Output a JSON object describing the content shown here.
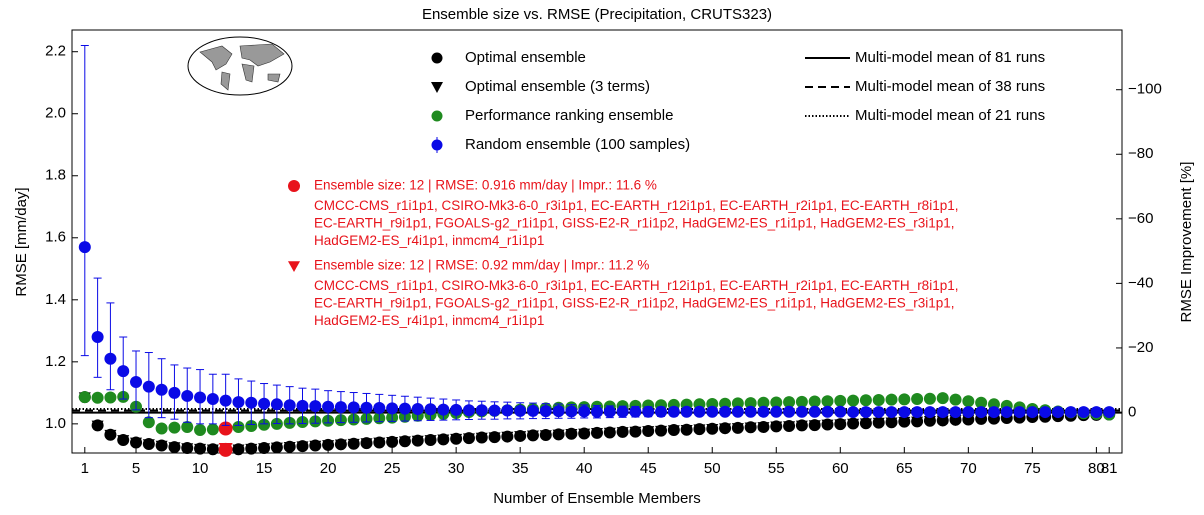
{
  "chart_data": {
    "type": "scatter",
    "title": "Ensemble size vs. RMSE (Precipitation, CRUTS323)",
    "x_label": "Number of Ensemble Members",
    "y_label": "RMSE [mm/day]",
    "y2_label": "RMSE Improvement [%]",
    "x": [
      1,
      2,
      3,
      4,
      5,
      6,
      7,
      8,
      9,
      10,
      11,
      12,
      13,
      14,
      15,
      16,
      17,
      18,
      19,
      20,
      21,
      22,
      23,
      24,
      25,
      26,
      27,
      28,
      29,
      30,
      31,
      32,
      33,
      34,
      35,
      36,
      37,
      38,
      39,
      40,
      41,
      42,
      43,
      44,
      45,
      46,
      47,
      48,
      49,
      50,
      51,
      52,
      53,
      54,
      55,
      56,
      57,
      58,
      59,
      60,
      61,
      62,
      63,
      64,
      65,
      66,
      67,
      68,
      69,
      70,
      71,
      72,
      73,
      74,
      75,
      76,
      77,
      78,
      79,
      80,
      81
    ],
    "xlim": [
      0,
      82
    ],
    "xticks": [
      1,
      5,
      10,
      15,
      20,
      25,
      30,
      35,
      40,
      45,
      50,
      55,
      60,
      65,
      70,
      75,
      80,
      81
    ],
    "ylim": [
      0.906,
      2.27
    ],
    "yticks": [
      {
        "value": 1,
        "label": "1.0"
      },
      1.2,
      1.4,
      1.6,
      1.8,
      {
        "value": 2,
        "label": "2.0"
      },
      2.2
    ],
    "y2lim": [
      12.55,
      -118.5
    ],
    "y2ticks": [
      0,
      {
        "value": -20,
        "label": "−20"
      },
      {
        "value": -40,
        "label": "−40"
      },
      {
        "value": -60,
        "label": "−60"
      },
      {
        "value": -80,
        "label": "−80"
      },
      {
        "value": -100,
        "label": "−100"
      }
    ],
    "series": [
      {
        "name": "Optimal ensemble (3 terms)",
        "marker": "triangle",
        "color": "#000000",
        "values": [
          1.086,
          0.995,
          0.965,
          0.948,
          0.94,
          0.935,
          0.93,
          0.925,
          0.922,
          0.92,
          0.918,
          0.92,
          0.918,
          0.92,
          0.922,
          0.924,
          0.926,
          0.928,
          0.93,
          0.932,
          0.934,
          0.936,
          0.938,
          0.94,
          0.942,
          0.944,
          0.946,
          0.948,
          0.95,
          0.952,
          0.954,
          0.956,
          0.957,
          0.959,
          0.961,
          0.963,
          0.964,
          0.966,
          0.968,
          0.969,
          0.971,
          0.972,
          0.974,
          0.975,
          0.977,
          0.978,
          0.98,
          0.981,
          0.983,
          0.984,
          0.986,
          0.987,
          0.989,
          0.99,
          0.992,
          0.993,
          0.995,
          0.996,
          0.998,
          0.999,
          1.001,
          1.002,
          1.004,
          1.005,
          1.007,
          1.008,
          1.01,
          1.011,
          1.013,
          1.014,
          1.016,
          1.017,
          1.019,
          1.02,
          1.022,
          1.023,
          1.025,
          1.026,
          1.028,
          1.029,
          1.03
        ]
      },
      {
        "name": "Optimal ensemble",
        "marker": "circle",
        "color": "#000000",
        "values": [
          1.086,
          0.995,
          0.965,
          0.948,
          0.94,
          0.935,
          0.93,
          0.925,
          0.922,
          0.92,
          0.918,
          0.916,
          0.918,
          0.92,
          0.922,
          0.924,
          0.926,
          0.928,
          0.93,
          0.932,
          0.934,
          0.936,
          0.938,
          0.94,
          0.942,
          0.944,
          0.946,
          0.948,
          0.95,
          0.952,
          0.954,
          0.956,
          0.957,
          0.959,
          0.961,
          0.963,
          0.964,
          0.966,
          0.968,
          0.969,
          0.971,
          0.972,
          0.974,
          0.975,
          0.977,
          0.978,
          0.98,
          0.981,
          0.983,
          0.984,
          0.986,
          0.987,
          0.989,
          0.99,
          0.992,
          0.993,
          0.995,
          0.996,
          0.998,
          0.999,
          1.001,
          1.002,
          1.004,
          1.005,
          1.007,
          1.008,
          1.01,
          1.011,
          1.013,
          1.014,
          1.016,
          1.017,
          1.019,
          1.02,
          1.022,
          1.023,
          1.025,
          1.026,
          1.028,
          1.029,
          1.03
        ]
      },
      {
        "name": "Performance ranking ensemble",
        "marker": "circle",
        "color": "#1f8a1f",
        "values": [
          1.086,
          1.084,
          1.085,
          1.087,
          1.055,
          1.005,
          0.985,
          0.988,
          0.99,
          0.98,
          0.982,
          0.985,
          0.99,
          0.993,
          0.997,
          1.0,
          1.003,
          1.006,
          1.008,
          1.01,
          1.012,
          1.014,
          1.016,
          1.018,
          1.02,
          1.023,
          1.026,
          1.029,
          1.032,
          1.035,
          1.038,
          1.04,
          1.042,
          1.044,
          1.046,
          1.048,
          1.05,
          1.052,
          1.053,
          1.054,
          1.055,
          1.056,
          1.057,
          1.058,
          1.059,
          1.06,
          1.061,
          1.062,
          1.063,
          1.064,
          1.065,
          1.066,
          1.067,
          1.068,
          1.069,
          1.07,
          1.071,
          1.072,
          1.073,
          1.074,
          1.075,
          1.076,
          1.077,
          1.078,
          1.079,
          1.08,
          1.081,
          1.083,
          1.078,
          1.073,
          1.068,
          1.063,
          1.058,
          1.053,
          1.048,
          1.044,
          1.04,
          1.037,
          1.034,
          1.032,
          1.03
        ]
      },
      {
        "name": "Random ensemble (100 samples)",
        "marker": "errorbar",
        "color": "#0a0ae6",
        "values": [
          1.57,
          1.28,
          1.21,
          1.17,
          1.135,
          1.12,
          1.11,
          1.1,
          1.09,
          1.085,
          1.08,
          1.075,
          1.07,
          1.068,
          1.065,
          1.063,
          1.06,
          1.058,
          1.057,
          1.055,
          1.054,
          1.053,
          1.052,
          1.051,
          1.05,
          1.049,
          1.048,
          1.047,
          1.046,
          1.045,
          1.044,
          1.044,
          1.043,
          1.043,
          1.042,
          1.042,
          1.041,
          1.041,
          1.04,
          1.04,
          1.039,
          1.039,
          1.039,
          1.039,
          1.039,
          1.039,
          1.039,
          1.039,
          1.039,
          1.039,
          1.039,
          1.039,
          1.039,
          1.039,
          1.039,
          1.039,
          1.039,
          1.039,
          1.039,
          1.039,
          1.038,
          1.038,
          1.038,
          1.038,
          1.038,
          1.038,
          1.038,
          1.038,
          1.038,
          1.038,
          1.038,
          1.038,
          1.038,
          1.038,
          1.038,
          1.038,
          1.038,
          1.038,
          1.038,
          1.038,
          1.038
        ],
        "error_minus": [
          0.35,
          0.13,
          0.1,
          0.09,
          0.09,
          0.1,
          0.09,
          0.085,
          0.085,
          0.085,
          0.08,
          0.08,
          0.075,
          0.07,
          0.065,
          0.062,
          0.06,
          0.057,
          0.055,
          0.052,
          0.05,
          0.048,
          0.046,
          0.044,
          0.042,
          0.04,
          0.038,
          0.036,
          0.034,
          0.032,
          0.03,
          0.029,
          0.028,
          0.027,
          0.026,
          0.025,
          0.024,
          0.023,
          0.022,
          0.021,
          0.02,
          0.019,
          0.018,
          0.017,
          0.016,
          0.015,
          0.014,
          0.013,
          0.012,
          0.012,
          0.011,
          0.011,
          0.01,
          0.01,
          0.009,
          0.009,
          0.008,
          0.008,
          0.007,
          0.007,
          0.006,
          0.006,
          0.006,
          0.005,
          0.005,
          0.005,
          0.004,
          0.004,
          0.004,
          0.003,
          0.003,
          0.003,
          0.003,
          0.002,
          0.002,
          0.002,
          0.002,
          0.001,
          0.001,
          0.001,
          0
        ],
        "error_plus": [
          0.65,
          0.19,
          0.18,
          0.11,
          0.1,
          0.11,
          0.1,
          0.09,
          0.09,
          0.09,
          0.08,
          0.085,
          0.075,
          0.07,
          0.065,
          0.062,
          0.06,
          0.057,
          0.055,
          0.052,
          0.05,
          0.048,
          0.046,
          0.044,
          0.042,
          0.04,
          0.038,
          0.036,
          0.034,
          0.032,
          0.03,
          0.029,
          0.028,
          0.027,
          0.026,
          0.025,
          0.024,
          0.023,
          0.022,
          0.021,
          0.02,
          0.019,
          0.018,
          0.017,
          0.016,
          0.015,
          0.014,
          0.013,
          0.012,
          0.012,
          0.011,
          0.011,
          0.01,
          0.01,
          0.009,
          0.009,
          0.008,
          0.008,
          0.007,
          0.007,
          0.006,
          0.006,
          0.006,
          0.005,
          0.005,
          0.005,
          0.004,
          0.004,
          0.004,
          0.003,
          0.003,
          0.003,
          0.003,
          0.002,
          0.002,
          0.002,
          0.002,
          0.001,
          0.001,
          0.001,
          0
        ]
      }
    ],
    "reference_lines": [
      {
        "name": "Multi-model mean of 81 runs",
        "value": 1.036,
        "style": "solid"
      },
      {
        "name": "Multi-model mean of 38 runs",
        "value": 1.043,
        "style": "dashed"
      },
      {
        "name": "Multi-model mean of 21 runs",
        "value": 1.048,
        "style": "dotted"
      }
    ],
    "highlight_x": 12,
    "highlight_color": "#e8131b",
    "annotations": [
      {
        "marker": "circle",
        "lines": [
          "Ensemble size: 12 | RMSE: 0.916 mm/day | Impr.: 11.6 %",
          "CMCC-CMS_r1i1p1, CSIRO-Mk3-6-0_r3i1p1, EC-EARTH_r12i1p1, EC-EARTH_r2i1p1, EC-EARTH_r8i1p1,",
          "EC-EARTH_r9i1p1, FGOALS-g2_r1i1p1, GISS-E2-R_r1i1p2, HadGEM2-ES_r1i1p1, HadGEM2-ES_r3i1p1,",
          "HadGEM2-ES_r4i1p1, inmcm4_r1i1p1"
        ]
      },
      {
        "marker": "triangle",
        "lines": [
          "Ensemble size: 12 | RMSE: 0.92 mm/day | Impr.: 11.2 %",
          "CMCC-CMS_r1i1p1, CSIRO-Mk3-6-0_r3i1p1, EC-EARTH_r12i1p1, EC-EARTH_r2i1p1, EC-EARTH_r8i1p1,",
          "EC-EARTH_r9i1p1, FGOALS-g2_r1i1p1, GISS-E2-R_r1i1p2, HadGEM2-ES_r1i1p1, HadGEM2-ES_r3i1p1,",
          "HadGEM2-ES_r4i1p1, inmcm4_r1i1p1"
        ]
      }
    ]
  }
}
